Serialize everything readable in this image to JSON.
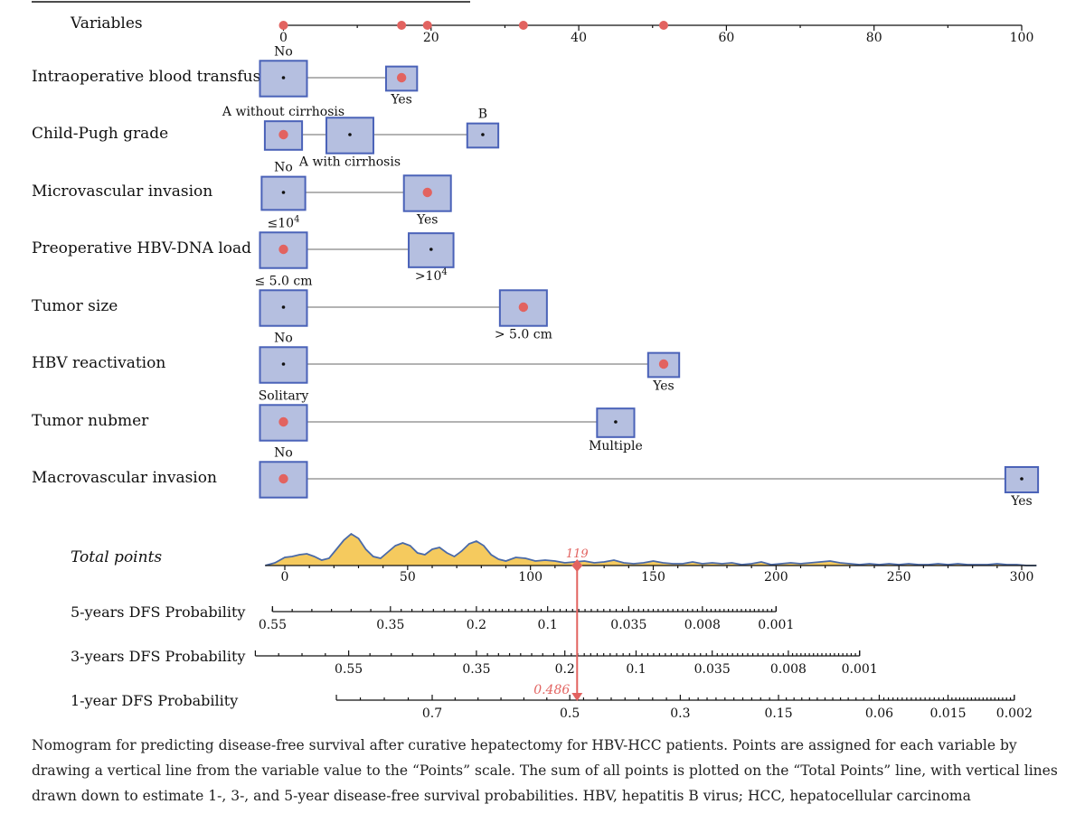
{
  "chart_data": {
    "type": "nomogram",
    "points_axis": {
      "label": "Variables",
      "min": 0,
      "max": 100,
      "ticks": [
        0,
        20,
        40,
        60,
        80,
        100
      ],
      "selected_points": [
        0,
        16,
        19.5,
        32.5,
        51.5
      ]
    },
    "variables": [
      {
        "name": "Intraoperative blood transfusion",
        "levels": [
          {
            "label": "No",
            "points": 0,
            "weight": 1,
            "label_pos": "above",
            "selected": false
          },
          {
            "label": "Yes",
            "points": 16,
            "weight": 0.4,
            "label_pos": "below",
            "selected": true
          }
        ]
      },
      {
        "name": "Child-Pugh grade",
        "levels": [
          {
            "label": "A without cirrhosis",
            "points": 0,
            "weight": 0.6,
            "label_pos": "above",
            "selected": true
          },
          {
            "label": "A with cirrhosis",
            "points": 9,
            "weight": 1,
            "label_pos": "below",
            "selected": false
          },
          {
            "label": "B",
            "points": 27,
            "weight": 0.4,
            "label_pos": "above",
            "selected": false
          }
        ]
      },
      {
        "name": "Microvascular invasion",
        "levels": [
          {
            "label": "No",
            "points": 0,
            "weight": 0.85,
            "label_pos": "above",
            "selected": false
          },
          {
            "label": "Yes",
            "points": 19.5,
            "weight": 1,
            "label_pos": "below",
            "selected": true
          }
        ]
      },
      {
        "name": "Preoperative HBV-DNA load",
        "levels": [
          {
            "label": "≤10",
            "sup": "4",
            "points": 0,
            "weight": 1,
            "label_pos": "above",
            "selected": true
          },
          {
            "label": ">10",
            "sup": "4",
            "points": 20,
            "weight": 0.9,
            "label_pos": "below",
            "selected": false
          }
        ]
      },
      {
        "name": "Tumor size",
        "levels": [
          {
            "label": "≤ 5.0 cm",
            "points": 0,
            "weight": 1,
            "label_pos": "above",
            "selected": false
          },
          {
            "label": "> 5.0 cm",
            "points": 32.5,
            "weight": 1,
            "label_pos": "below",
            "selected": true
          }
        ]
      },
      {
        "name": "HBV reactivation",
        "levels": [
          {
            "label": "No",
            "points": 0,
            "weight": 1,
            "label_pos": "above",
            "selected": false
          },
          {
            "label": "Yes",
            "points": 51.5,
            "weight": 0.4,
            "label_pos": "below",
            "selected": true
          }
        ]
      },
      {
        "name": "Tumor nubmer",
        "levels": [
          {
            "label": "Solitary",
            "points": 0,
            "weight": 1,
            "label_pos": "above",
            "selected": true
          },
          {
            "label": "Multiple",
            "points": 45,
            "weight": 0.6,
            "label_pos": "below",
            "selected": false
          }
        ]
      },
      {
        "name": "Macrovascular invasion",
        "levels": [
          {
            "label": "No",
            "points": 0,
            "weight": 1,
            "label_pos": "above",
            "selected": true
          },
          {
            "label": "Yes",
            "points": 100,
            "weight": 0.45,
            "label_pos": "below",
            "selected": false
          }
        ]
      }
    ],
    "total_points": {
      "label": "Total points",
      "min": 0,
      "max": 300,
      "ticks": [
        0,
        50,
        100,
        150,
        200,
        250,
        300
      ],
      "value": 119,
      "value_label": "119",
      "density": [
        [
          -8,
          0
        ],
        [
          -4,
          3
        ],
        [
          0,
          9
        ],
        [
          3,
          10
        ],
        [
          6,
          12
        ],
        [
          9,
          13
        ],
        [
          12,
          10
        ],
        [
          15,
          6
        ],
        [
          18,
          8
        ],
        [
          21,
          18
        ],
        [
          24,
          28
        ],
        [
          27,
          35
        ],
        [
          30,
          30
        ],
        [
          33,
          18
        ],
        [
          36,
          10
        ],
        [
          39,
          8
        ],
        [
          42,
          15
        ],
        [
          45,
          22
        ],
        [
          48,
          25
        ],
        [
          51,
          22
        ],
        [
          54,
          14
        ],
        [
          57,
          12
        ],
        [
          60,
          18
        ],
        [
          63,
          20
        ],
        [
          66,
          14
        ],
        [
          69,
          10
        ],
        [
          72,
          16
        ],
        [
          75,
          24
        ],
        [
          78,
          27
        ],
        [
          81,
          22
        ],
        [
          84,
          12
        ],
        [
          87,
          7
        ],
        [
          90,
          5
        ],
        [
          94,
          9
        ],
        [
          98,
          8
        ],
        [
          102,
          5
        ],
        [
          106,
          6
        ],
        [
          110,
          5
        ],
        [
          114,
          3
        ],
        [
          118,
          4
        ],
        [
          122,
          5
        ],
        [
          126,
          3
        ],
        [
          130,
          4
        ],
        [
          134,
          6
        ],
        [
          138,
          3
        ],
        [
          142,
          2
        ],
        [
          146,
          3
        ],
        [
          150,
          5
        ],
        [
          154,
          3
        ],
        [
          158,
          2
        ],
        [
          162,
          2
        ],
        [
          166,
          4
        ],
        [
          170,
          2
        ],
        [
          174,
          3
        ],
        [
          178,
          2
        ],
        [
          182,
          3
        ],
        [
          186,
          1
        ],
        [
          190,
          2
        ],
        [
          194,
          4
        ],
        [
          198,
          1
        ],
        [
          202,
          2
        ],
        [
          206,
          3
        ],
        [
          210,
          2
        ],
        [
          214,
          3
        ],
        [
          218,
          4
        ],
        [
          222,
          5
        ],
        [
          226,
          3
        ],
        [
          230,
          2
        ],
        [
          234,
          1
        ],
        [
          238,
          2
        ],
        [
          242,
          1
        ],
        [
          246,
          2
        ],
        [
          250,
          1
        ],
        [
          254,
          2
        ],
        [
          258,
          1
        ],
        [
          262,
          1
        ],
        [
          266,
          2
        ],
        [
          270,
          1
        ],
        [
          274,
          2
        ],
        [
          278,
          1
        ],
        [
          282,
          1
        ],
        [
          286,
          1
        ],
        [
          290,
          2
        ],
        [
          294,
          1
        ],
        [
          298,
          1
        ],
        [
          302,
          0
        ],
        [
          306,
          0
        ]
      ]
    },
    "probability_scales": [
      {
        "label": "5-years DFS Probability",
        "major": [
          {
            "p": "0.55",
            "pts": -5
          },
          {
            "p": "0.35",
            "pts": 43
          },
          {
            "p": "0.2",
            "pts": 78
          },
          {
            "p": "0.1",
            "pts": 107
          },
          {
            "p": "0.035",
            "pts": 140
          },
          {
            "p": "0.008",
            "pts": 170
          },
          {
            "p": "0.001",
            "pts": 200
          }
        ],
        "range": [
          -5,
          200
        ]
      },
      {
        "label": "3-years DFS Probability",
        "major": [
          {
            "p": "0.55",
            "pts": 26
          },
          {
            "p": "0.35",
            "pts": 78
          },
          {
            "p": "0.2",
            "pts": 114
          },
          {
            "p": "0.1",
            "pts": 143
          },
          {
            "p": "0.035",
            "pts": 174
          },
          {
            "p": "0.008",
            "pts": 205
          },
          {
            "p": "0.001",
            "pts": 234
          }
        ],
        "range": [
          -12,
          234
        ]
      },
      {
        "label": "1-year DFS Probability",
        "major": [
          {
            "p": "0.7",
            "pts": 60
          },
          {
            "p": "0.5",
            "pts": 116
          },
          {
            "p": "0.3",
            "pts": 161
          },
          {
            "p": "0.15",
            "pts": 201
          },
          {
            "p": "0.06",
            "pts": 242
          },
          {
            "p": "0.015",
            "pts": 270
          },
          {
            "p": "0.002",
            "pts": 297
          }
        ],
        "range": [
          21,
          297
        ],
        "marker_value": "0.486"
      }
    ],
    "colors": {
      "box_fill": "#b5bfe0",
      "box_stroke": "#4a62b8",
      "highlight": "#e26360",
      "density_fill": "#f5ca5e",
      "density_line": "#4a6aa8"
    }
  },
  "caption": "Nomogram for predicting disease-free survival after curative hepatectomy for HBV-HCC patients. Points are assigned for each variable by drawing a vertical line from the variable value to the “Points” scale. The sum of all points is plotted on the “Total Points” line, with vertical lines drawn down to estimate 1-, 3-, and 5-year disease-free survival probabilities. HBV, hepatitis B virus; HCC, hepatocellular carcinoma"
}
